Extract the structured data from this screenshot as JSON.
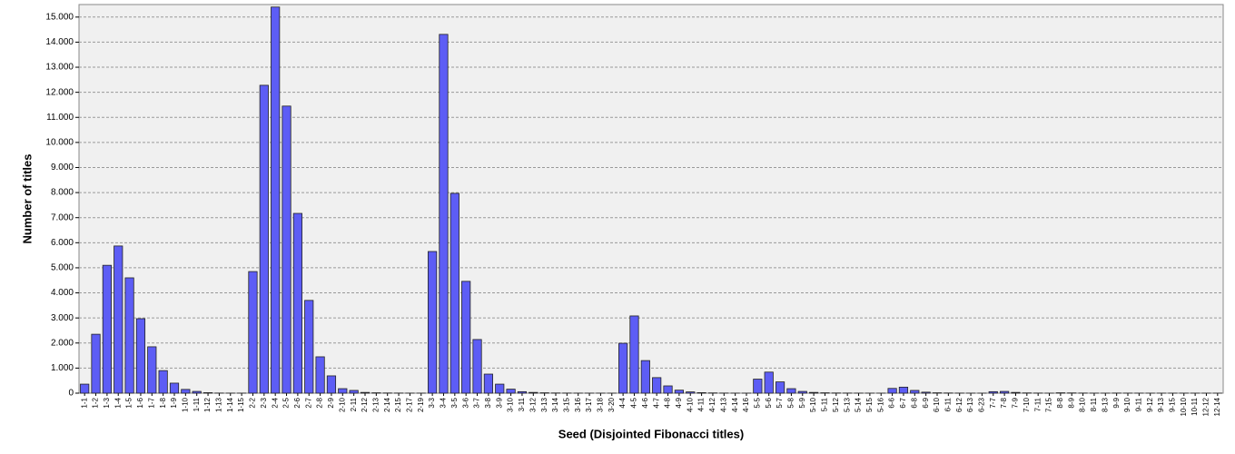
{
  "chart_data": {
    "type": "bar",
    "x_label": "Seed (Disjointed Fibonacci titles)",
    "y_label": "Number of titles",
    "color": "#5d5df5",
    "grid": true,
    "ylim": [
      0,
      15500
    ],
    "yticks": [
      0,
      {
        "value": 1000,
        "label": "1.000"
      },
      {
        "value": 2000,
        "label": "2.000"
      },
      {
        "value": 3000,
        "label": "3.000"
      },
      {
        "value": 4000,
        "label": "4.000"
      },
      {
        "value": 5000,
        "label": "5.000"
      },
      {
        "value": 6000,
        "label": "6.000"
      },
      {
        "value": 7000,
        "label": "7.000"
      },
      {
        "value": 8000,
        "label": "8.000"
      },
      {
        "value": 9000,
        "label": "9.000"
      },
      {
        "value": 10000,
        "label": "10.000"
      },
      {
        "value": 11000,
        "label": "11.000"
      },
      {
        "value": 12000,
        "label": "12.000"
      },
      {
        "value": 13000,
        "label": "13.000"
      },
      {
        "value": 14000,
        "label": "14.000"
      },
      {
        "value": 15000,
        "label": "15.000"
      }
    ],
    "categories": [
      "1-1",
      "1-2",
      "1-3",
      "1-4",
      "1-5",
      "1-6",
      "1-7",
      "1-8",
      "1-9",
      "1-10",
      "1-11",
      "1-12",
      "1-13",
      "1-14",
      "1-15",
      "2-2",
      "2-3",
      "2-4",
      "2-5",
      "2-6",
      "2-7",
      "2-8",
      "2-9",
      "2-10",
      "2-11",
      "2-12",
      "2-13",
      "2-14",
      "2-15",
      "2-17",
      "2-19",
      "3-3",
      "3-4",
      "3-5",
      "3-6",
      "3-7",
      "3-8",
      "3-9",
      "3-10",
      "3-11",
      "3-12",
      "3-13",
      "3-14",
      "3-15",
      "3-16",
      "3-17",
      "3-18",
      "3-20",
      "4-4",
      "4-5",
      "4-6",
      "4-7",
      "4-8",
      "4-9",
      "4-10",
      "4-11",
      "4-12",
      "4-13",
      "4-14",
      "4-16",
      "5-5",
      "5-6",
      "5-7",
      "5-8",
      "5-9",
      "5-10",
      "5-11",
      "5-12",
      "5-13",
      "5-14",
      "5-15",
      "5-16",
      "6-6",
      "6-7",
      "6-8",
      "6-9",
      "6-10",
      "6-11",
      "6-12",
      "6-13",
      "6-23",
      "7-7",
      "7-8",
      "7-9",
      "7-10",
      "7-11",
      "7-15",
      "8-8",
      "8-9",
      "8-10",
      "8-11",
      "8-13",
      "9-9",
      "9-10",
      "9-11",
      "9-12",
      "9-13",
      "9-15",
      "10-10",
      "10-11",
      "12-12",
      "12-14"
    ],
    "values": [
      360,
      2350,
      5100,
      5870,
      4600,
      2970,
      1850,
      900,
      400,
      150,
      70,
      20,
      5,
      3,
      2,
      4850,
      12280,
      15400,
      11450,
      7170,
      3700,
      1450,
      690,
      180,
      110,
      30,
      15,
      8,
      5,
      3,
      2,
      5650,
      14310,
      7970,
      4460,
      2140,
      760,
      360,
      160,
      60,
      30,
      15,
      8,
      5,
      3,
      2,
      2,
      1,
      1990,
      3080,
      1300,
      620,
      290,
      120,
      50,
      20,
      10,
      5,
      3,
      2,
      560,
      840,
      450,
      180,
      70,
      30,
      15,
      8,
      5,
      3,
      2,
      1,
      190,
      240,
      110,
      40,
      15,
      8,
      4,
      2,
      1,
      60,
      70,
      30,
      10,
      5,
      1,
      15,
      10,
      5,
      2,
      1,
      5,
      3,
      2,
      1,
      1,
      1,
      2,
      1,
      1,
      1
    ]
  }
}
